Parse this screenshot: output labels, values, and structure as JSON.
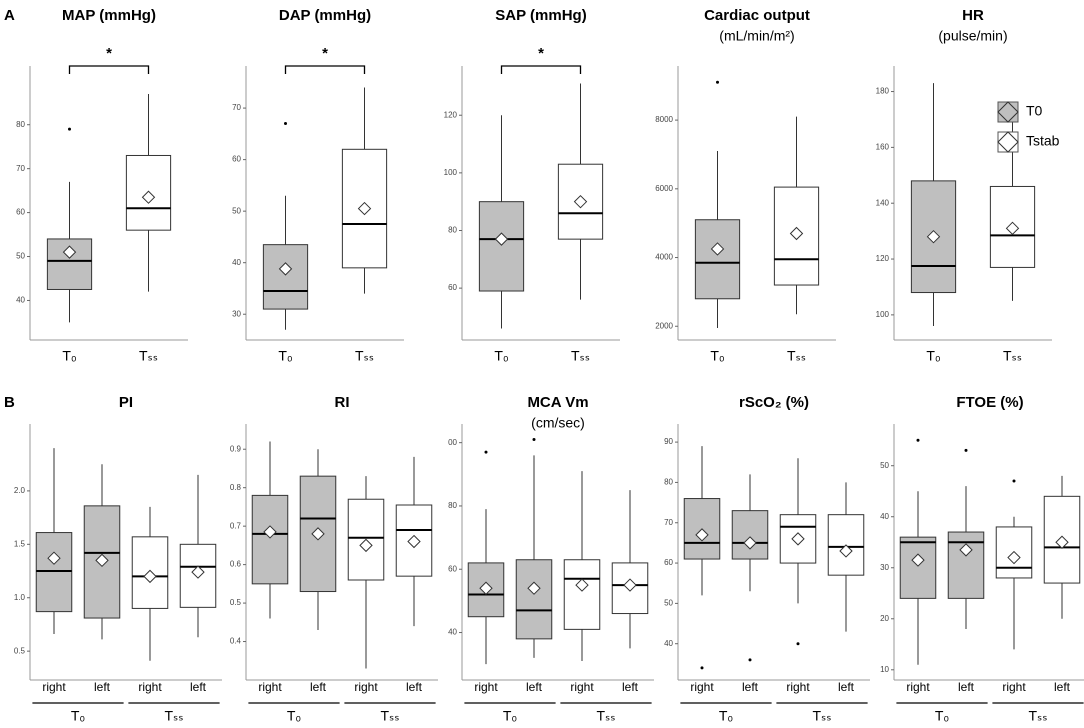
{
  "panels": [
    "A",
    "B"
  ],
  "chart_data": [
    {
      "type": "box",
      "title": "MAP (mmHg)",
      "annotation": "*",
      "categories": [
        "T₀",
        "Tₛₛ"
      ],
      "ylim": [
        31,
        92
      ],
      "yticks": [
        40,
        50,
        60,
        70,
        80
      ],
      "boxes": [
        {
          "min": 35,
          "q1": 42.5,
          "median": 49,
          "q3": 54,
          "max": 67,
          "mean": 51,
          "outliers": [
            79
          ],
          "color": "#bfbfbf"
        },
        {
          "min": 42,
          "q1": 56,
          "median": 61,
          "q3": 73,
          "max": 87,
          "mean": 63.5,
          "outliers": [],
          "color": "#ffffff"
        }
      ]
    },
    {
      "type": "box",
      "title": "DAP (mmHg)",
      "annotation": "*",
      "categories": [
        "T₀",
        "Tₛₛ"
      ],
      "ylim": [
        25,
        77
      ],
      "yticks": [
        30,
        40,
        50,
        60,
        70
      ],
      "boxes": [
        {
          "min": 27,
          "q1": 31,
          "median": 34.5,
          "q3": 43.5,
          "max": 53,
          "mean": 38.8,
          "outliers": [
            67
          ],
          "color": "#bfbfbf"
        },
        {
          "min": 34,
          "q1": 39,
          "median": 47.5,
          "q3": 62,
          "max": 74,
          "mean": 50.5,
          "outliers": [],
          "color": "#ffffff"
        }
      ]
    },
    {
      "type": "box",
      "title": "SAP (mmHg)",
      "annotation": "*",
      "categories": [
        "T₀",
        "Tₛₛ"
      ],
      "ylim": [
        42,
        135
      ],
      "yticks": [
        60,
        80,
        100,
        120
      ],
      "boxes": [
        {
          "min": 46,
          "q1": 59,
          "median": 77,
          "q3": 90,
          "max": 120,
          "mean": 77,
          "outliers": [],
          "color": "#bfbfbf"
        },
        {
          "min": 56,
          "q1": 77,
          "median": 86,
          "q3": 103,
          "max": 131,
          "mean": 90,
          "outliers": [],
          "color": "#ffffff"
        }
      ]
    },
    {
      "type": "box",
      "title": "Cardiac output",
      "subtitle": "(mL/min/m²)",
      "categories": [
        "T₀",
        "Tₛₛ"
      ],
      "ylim": [
        1600,
        9400
      ],
      "yticks": [
        2000,
        4000,
        6000,
        8000
      ],
      "boxes": [
        {
          "min": 1950,
          "q1": 2800,
          "median": 3850,
          "q3": 5100,
          "max": 7100,
          "mean": 4250,
          "outliers": [
            9100
          ],
          "color": "#bfbfbf"
        },
        {
          "min": 2350,
          "q1": 3200,
          "median": 3950,
          "q3": 6050,
          "max": 8100,
          "mean": 4700,
          "outliers": [],
          "color": "#ffffff"
        }
      ]
    },
    {
      "type": "box",
      "title": "HR",
      "subtitle": "(pulse/min)",
      "categories": [
        "T₀",
        "Tₛₛ"
      ],
      "ylim": [
        91,
        187
      ],
      "yticks": [
        100,
        120,
        140,
        160,
        180
      ],
      "legend": [
        {
          "name": "T0",
          "color": "#bfbfbf"
        },
        {
          "name": "Tstab",
          "color": "#ffffff"
        }
      ],
      "boxes": [
        {
          "min": 96,
          "q1": 108,
          "median": 117.5,
          "q3": 148,
          "max": 183,
          "mean": 128,
          "outliers": [],
          "color": "#bfbfbf"
        },
        {
          "min": 105,
          "q1": 117,
          "median": 128.5,
          "q3": 146,
          "max": 175,
          "mean": 131,
          "outliers": [],
          "color": "#ffffff"
        }
      ]
    },
    {
      "type": "box",
      "title": "PI",
      "categories": [
        "right",
        "left",
        "right",
        "left"
      ],
      "groups": [
        "T₀",
        "Tₛₛ"
      ],
      "ylim": [
        0.23,
        2.57
      ],
      "yticks": [
        0.5,
        {
          "value": 1,
          "label": "1.0"
        },
        1.5,
        {
          "value": 2,
          "label": "2.0"
        }
      ],
      "boxes": [
        {
          "min": 0.66,
          "q1": 0.87,
          "median": 1.25,
          "q3": 1.61,
          "max": 2.4,
          "mean": 1.37,
          "outliers": [],
          "color": "#bfbfbf"
        },
        {
          "min": 0.61,
          "q1": 0.81,
          "median": 1.42,
          "q3": 1.86,
          "max": 2.25,
          "mean": 1.35,
          "outliers": [],
          "color": "#bfbfbf"
        },
        {
          "min": 0.41,
          "q1": 0.9,
          "median": 1.2,
          "q3": 1.57,
          "max": 1.85,
          "mean": 1.2,
          "outliers": [],
          "color": "#ffffff"
        },
        {
          "min": 0.63,
          "q1": 0.91,
          "median": 1.29,
          "q3": 1.5,
          "max": 2.15,
          "mean": 1.24,
          "outliers": [],
          "color": "#ffffff"
        }
      ]
    },
    {
      "type": "box",
      "title": "RI",
      "categories": [
        "right",
        "left",
        "right",
        "left"
      ],
      "groups": [
        "T₀",
        "Tₛₛ"
      ],
      "ylim": [
        0.3,
        0.95
      ],
      "yticks": [
        0.4,
        0.5,
        0.6,
        0.7,
        0.8,
        0.9
      ],
      "boxes": [
        {
          "min": 0.46,
          "q1": 0.55,
          "median": 0.68,
          "q3": 0.78,
          "max": 0.92,
          "mean": 0.685,
          "outliers": [],
          "color": "#bfbfbf"
        },
        {
          "min": 0.43,
          "q1": 0.53,
          "median": 0.72,
          "q3": 0.83,
          "max": 0.9,
          "mean": 0.68,
          "outliers": [],
          "color": "#bfbfbf"
        },
        {
          "min": 0.33,
          "q1": 0.56,
          "median": 0.67,
          "q3": 0.77,
          "max": 0.83,
          "mean": 0.65,
          "outliers": [],
          "color": "#ffffff"
        },
        {
          "min": 0.44,
          "q1": 0.57,
          "median": 0.69,
          "q3": 0.755,
          "max": 0.88,
          "mean": 0.66,
          "outliers": [],
          "color": "#ffffff"
        }
      ]
    },
    {
      "type": "box",
      "title": "MCA Vm",
      "subtitle": "(cm/sec)",
      "categories": [
        "right",
        "left",
        "right",
        "left"
      ],
      "groups": [
        "T₀",
        "Tₛₛ"
      ],
      "ylim": [
        25,
        104
      ],
      "yticks": [
        40,
        60,
        80,
        {
          "value": 100,
          "label": "00"
        }
      ],
      "boxes": [
        {
          "min": 30,
          "q1": 45,
          "median": 52,
          "q3": 62,
          "max": 79,
          "mean": 54,
          "outliers": [
            97
          ],
          "color": "#bfbfbf"
        },
        {
          "min": 32,
          "q1": 38,
          "median": 47,
          "q3": 63,
          "max": 96,
          "mean": 54,
          "outliers": [
            101
          ],
          "color": "#bfbfbf"
        },
        {
          "min": 31,
          "q1": 41,
          "median": 57,
          "q3": 63,
          "max": 91,
          "mean": 55,
          "outliers": [],
          "color": "#ffffff"
        },
        {
          "min": 35,
          "q1": 46,
          "median": 55,
          "q3": 62,
          "max": 85,
          "mean": 55,
          "outliers": [],
          "color": "#ffffff"
        }
      ]
    },
    {
      "type": "box",
      "title": "rScO₂ (%)",
      "categories": [
        "right",
        "left",
        "right",
        "left"
      ],
      "groups": [
        "T₀",
        "Tₛₛ"
      ],
      "ylim": [
        31,
        93
      ],
      "yticks": [
        40,
        50,
        60,
        70,
        80,
        90
      ],
      "boxes": [
        {
          "min": 52,
          "q1": 61,
          "median": 65,
          "q3": 76,
          "max": 89,
          "mean": 67,
          "outliers": [
            34
          ],
          "color": "#bfbfbf"
        },
        {
          "min": 53,
          "q1": 61,
          "median": 65,
          "q3": 73,
          "max": 82,
          "mean": 65,
          "outliers": [
            36
          ],
          "color": "#bfbfbf"
        },
        {
          "min": 50,
          "q1": 60,
          "median": 69,
          "q3": 72,
          "max": 86,
          "mean": 66,
          "outliers": [
            40
          ],
          "color": "#ffffff"
        },
        {
          "min": 43,
          "q1": 57,
          "median": 64,
          "q3": 72,
          "max": 80,
          "mean": 63,
          "outliers": [],
          "color": "#ffffff"
        }
      ]
    },
    {
      "type": "box",
      "title": "FTOE (%)",
      "categories": [
        "right",
        "left",
        "right",
        "left"
      ],
      "groups": [
        "T₀",
        "Tₛₛ"
      ],
      "ylim": [
        8,
        57
      ],
      "yticks": [
        10,
        20,
        30,
        40,
        50
      ],
      "boxes": [
        {
          "min": 11,
          "q1": 24,
          "median": 35,
          "q3": 36,
          "max": 45,
          "mean": 31.5,
          "outliers": [
            55
          ],
          "color": "#bfbfbf"
        },
        {
          "min": 18,
          "q1": 24,
          "median": 35,
          "q3": 37,
          "max": 46,
          "mean": 33.5,
          "outliers": [
            53
          ],
          "color": "#bfbfbf"
        },
        {
          "min": 14,
          "q1": 28,
          "median": 30,
          "q3": 38,
          "max": 40,
          "mean": 32,
          "outliers": [
            47
          ],
          "color": "#ffffff"
        },
        {
          "min": 20,
          "q1": 27,
          "median": 34,
          "q3": 44,
          "max": 48,
          "mean": 35,
          "outliers": [],
          "color": "#ffffff"
        }
      ]
    }
  ]
}
